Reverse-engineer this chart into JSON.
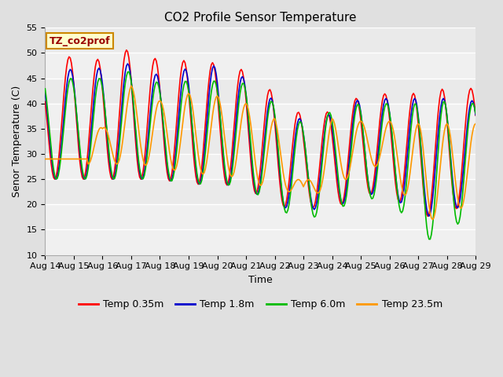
{
  "title": "CO2 Profile Sensor Temperature",
  "xlabel": "Time",
  "ylabel": "Senor Temperature (C)",
  "ylim": [
    10,
    55
  ],
  "series": {
    "Temp 0.35m": {
      "color": "#ff0000",
      "lw": 1.2
    },
    "Temp 1.8m": {
      "color": "#0000cc",
      "lw": 1.2
    },
    "Temp 6.0m": {
      "color": "#00bb00",
      "lw": 1.2
    },
    "Temp 23.5m": {
      "color": "#ff9900",
      "lw": 1.2
    }
  },
  "bg_color": "#e0e0e0",
  "plot_bg_light": "#f0f0f0",
  "plot_bg_dark": "#d8d8d8",
  "grid_color": "#ffffff",
  "title_fontsize": 11,
  "axis_fontsize": 9,
  "tick_fontsize": 8,
  "annot_fontsize": 9,
  "legend_fontsize": 9
}
